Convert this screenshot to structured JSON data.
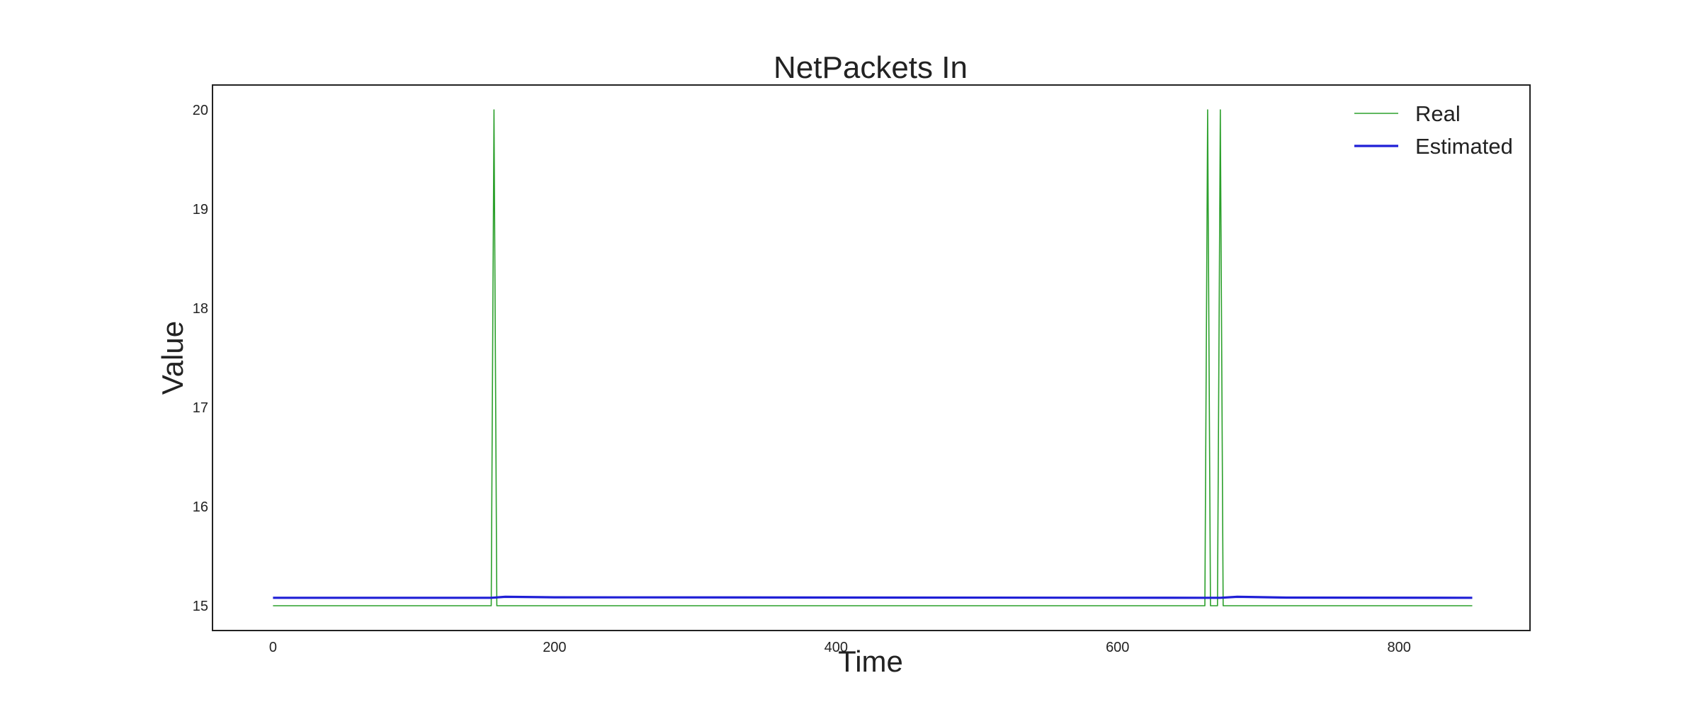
{
  "chart_data": {
    "type": "line",
    "title": "NetPackets In",
    "xlabel": "Time",
    "ylabel": "Value",
    "xlim": [
      -43,
      893
    ],
    "ylim": [
      14.75,
      20.25
    ],
    "xticks": [
      0,
      200,
      400,
      600,
      800
    ],
    "yticks": [
      15,
      16,
      17,
      18,
      19,
      20
    ],
    "grid": false,
    "legend": {
      "placement": "top-right"
    },
    "series": [
      {
        "name": "Real",
        "color": "#2ca02c",
        "stroke_style": "thin",
        "x": [
          0,
          155,
          157,
          159,
          662,
          664,
          666,
          671,
          673,
          675,
          852
        ],
        "y": [
          15,
          15,
          20,
          15,
          15,
          20,
          15,
          15,
          20,
          15,
          15
        ]
      },
      {
        "name": "Estimated",
        "color": "#1f1fd6",
        "stroke_style": "thick",
        "x": [
          0,
          155,
          165,
          200,
          662,
          673,
          685,
          720,
          852
        ],
        "y": [
          15.08,
          15.08,
          15.09,
          15.085,
          15.08,
          15.08,
          15.09,
          15.082,
          15.08
        ]
      }
    ]
  }
}
